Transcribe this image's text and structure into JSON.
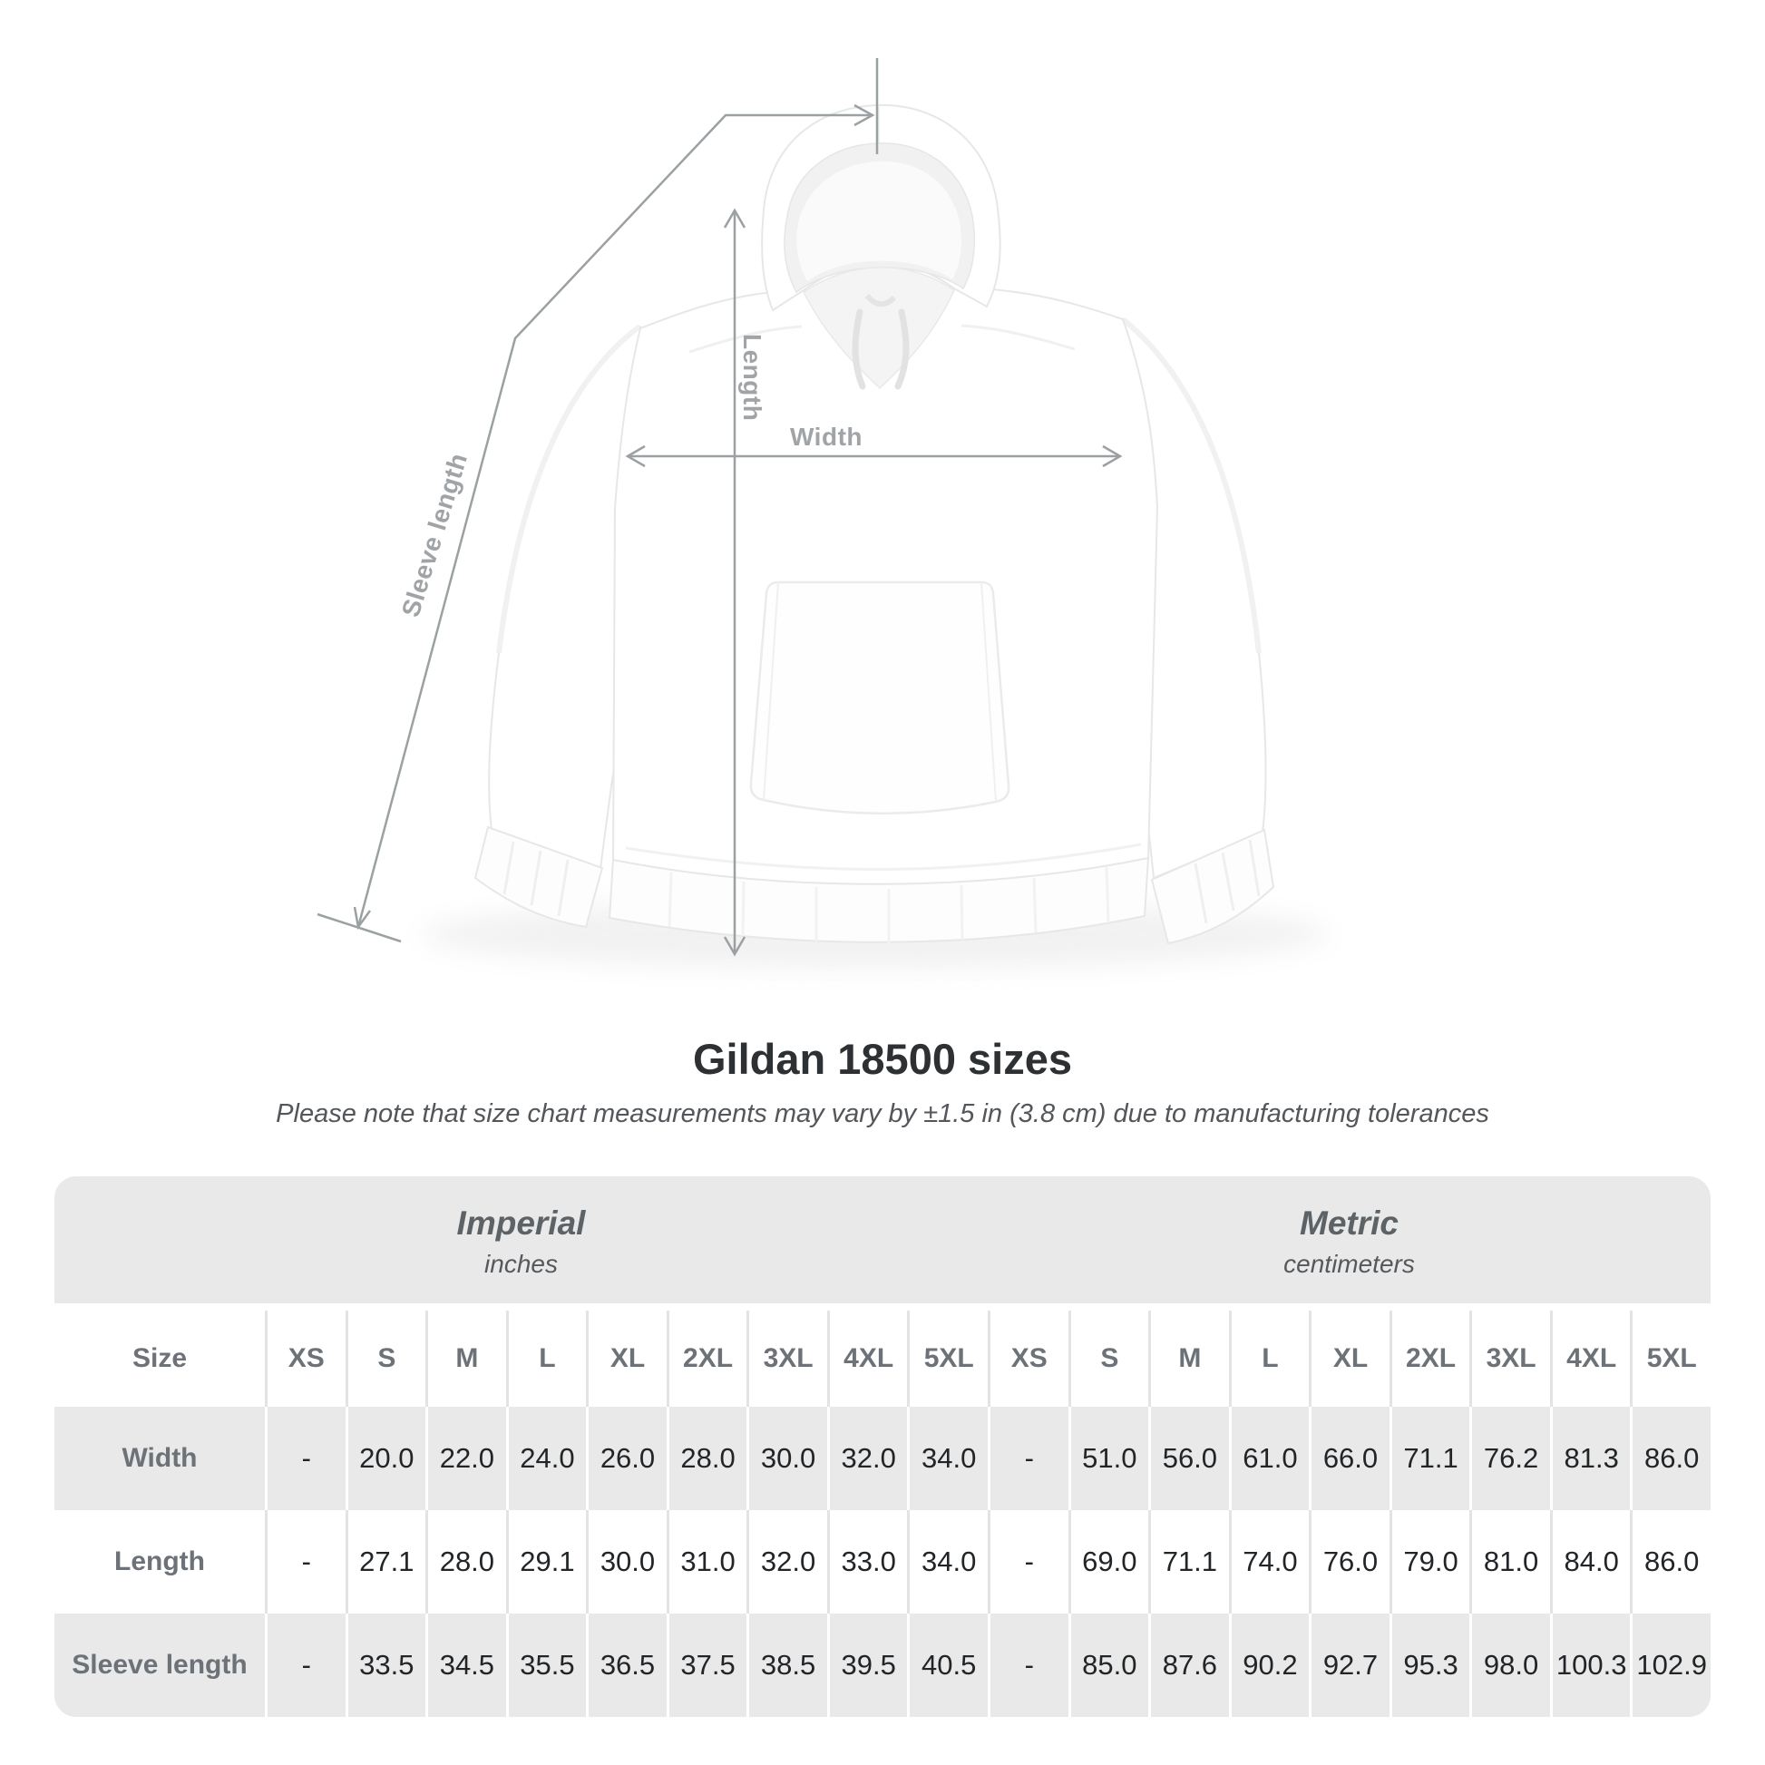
{
  "title": "Gildan 18500 sizes",
  "subtitle": "Please note that size chart measurements may vary by ±1.5 in (3.8 cm) due to manufacturing tolerances",
  "diagram": {
    "length_label": "Length",
    "width_label": "Width",
    "sleeve_label": "Sleeve length",
    "line_color": "#9ba0a3",
    "label_color": "#a0a4a7",
    "garment": "white pullover hoodie, front view"
  },
  "table": {
    "size_header": "Size",
    "groups": [
      {
        "name": "Imperial",
        "unit": "inches"
      },
      {
        "name": "Metric",
        "unit": "centimeters"
      }
    ],
    "columns": [
      "XS",
      "S",
      "M",
      "L",
      "XL",
      "2XL",
      "3XL",
      "4XL",
      "5XL",
      "XS",
      "S",
      "M",
      "L",
      "XL",
      "2XL",
      "3XL",
      "4XL",
      "5XL"
    ],
    "rows": [
      {
        "label": "Width",
        "values": [
          "-",
          "20.0",
          "22.0",
          "24.0",
          "26.0",
          "28.0",
          "30.0",
          "32.0",
          "34.0",
          "-",
          "51.0",
          "56.0",
          "61.0",
          "66.0",
          "71.1",
          "76.2",
          "81.3",
          "86.0"
        ]
      },
      {
        "label": "Length",
        "values": [
          "-",
          "27.1",
          "28.0",
          "29.1",
          "30.0",
          "31.0",
          "32.0",
          "33.0",
          "34.0",
          "-",
          "69.0",
          "71.1",
          "74.0",
          "76.0",
          "79.0",
          "81.0",
          "84.0",
          "86.0"
        ]
      },
      {
        "label": "Sleeve length",
        "values": [
          "-",
          "33.5",
          "34.5",
          "35.5",
          "36.5",
          "37.5",
          "38.5",
          "39.5",
          "40.5",
          "-",
          "85.0",
          "87.6",
          "90.2",
          "92.7",
          "95.3",
          "98.0",
          "100.3",
          "102.9"
        ]
      }
    ],
    "colors": {
      "band_background": "#e9e9e9",
      "alt_row_background": "#e9e9e9",
      "header_text": "#6c7277",
      "value_text": "#222528"
    }
  }
}
